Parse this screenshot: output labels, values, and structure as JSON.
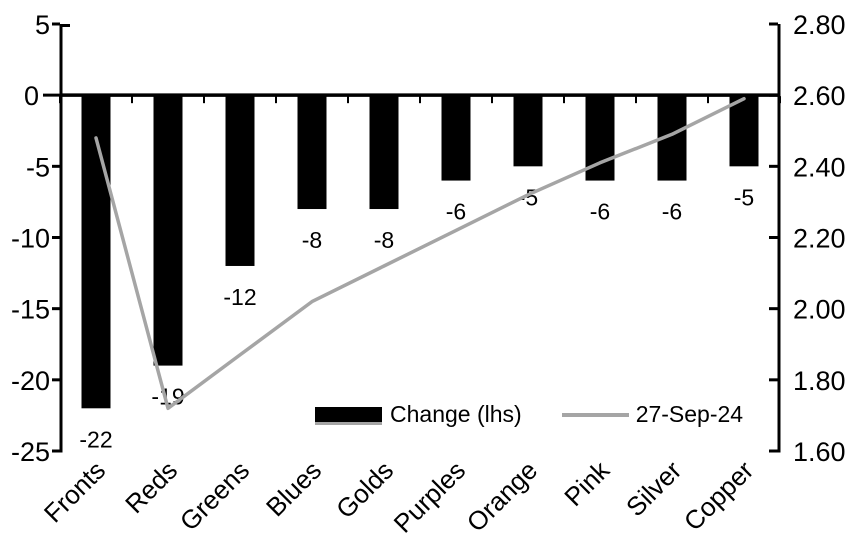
{
  "chart_data": {
    "type": "bar",
    "subtype": "combo-bar-line-dual-axis",
    "title": "",
    "xlabel": "",
    "ylabel": "",
    "grid": false,
    "background": "#ffffff",
    "categories": [
      "Fronts",
      "Reds",
      "Greens",
      "Blues",
      "Golds",
      "Purples",
      "Orange",
      "Pink",
      "Silver",
      "Copper"
    ],
    "series": [
      {
        "name": "Change (lhs)",
        "type": "bar",
        "axis": "left",
        "color": "#000000",
        "values": [
          -22,
          -19,
          -12,
          -8,
          -8,
          -6,
          -5,
          -6,
          -6,
          -5
        ],
        "data_labels": [
          "-22",
          "-19",
          "-12",
          "-8",
          "-8",
          "-6",
          "-5",
          "-6",
          "-6",
          "-5"
        ]
      },
      {
        "name": "27-Sep-24",
        "type": "line",
        "axis": "right",
        "color": "#a5a5a5",
        "values": [
          2.48,
          1.72,
          1.87,
          2.02,
          2.12,
          2.22,
          2.32,
          2.41,
          2.49,
          2.59
        ]
      }
    ],
    "left_axis": {
      "min": -25,
      "max": 5,
      "tick_step": 5,
      "tick_labels": [
        "5",
        "0",
        "-5",
        "-10",
        "-15",
        "-20",
        "-25"
      ]
    },
    "right_axis": {
      "min": 1.6,
      "max": 2.8,
      "tick_step": 0.2,
      "tick_labels": [
        "2.80",
        "2.60",
        "2.40",
        "2.20",
        "2.00",
        "1.80",
        "1.60"
      ]
    },
    "legend_position": "inside-bottom",
    "legend": [
      {
        "label": "Change (lhs)",
        "marker": "bar-swatch",
        "color": "#000000"
      },
      {
        "label": "27-Sep-24",
        "marker": "line-swatch",
        "color": "#a5a5a5"
      }
    ]
  },
  "colors": {
    "bar": "#000000",
    "line": "#a5a5a5",
    "axis": "#000000",
    "text": "#000000",
    "background": "#ffffff"
  }
}
